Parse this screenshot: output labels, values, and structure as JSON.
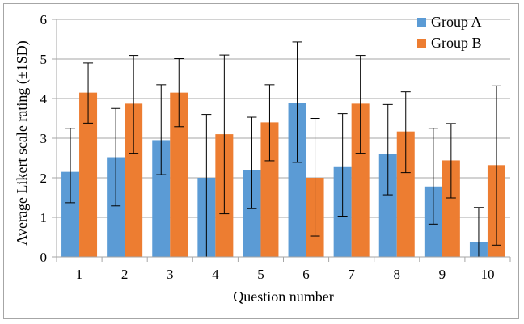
{
  "chart_data": {
    "type": "bar",
    "title": "",
    "xlabel": "Question number",
    "ylabel": "Average Likert scale rating (±1SD)",
    "categories": [
      "1",
      "2",
      "3",
      "4",
      "5",
      "6",
      "7",
      "8",
      "9",
      "10"
    ],
    "ylim": [
      0,
      6
    ],
    "yticks": [
      "0",
      "1",
      "2",
      "3",
      "4",
      "5",
      "6"
    ],
    "grid": true,
    "legend_position": "top-right",
    "series": [
      {
        "name": "Group A",
        "color": "#5b9bd5",
        "values": [
          2.15,
          2.52,
          2.95,
          2.0,
          2.2,
          3.88,
          2.27,
          2.6,
          1.78,
          0.37
        ],
        "err_upper": [
          3.25,
          3.75,
          4.35,
          3.6,
          3.53,
          5.43,
          3.62,
          3.85,
          3.25,
          1.25
        ],
        "err_lower": [
          1.37,
          1.29,
          2.08,
          0.0,
          1.22,
          2.39,
          1.03,
          1.57,
          0.83,
          0.0
        ]
      },
      {
        "name": "Group B",
        "color": "#ed7d31",
        "values": [
          4.15,
          3.87,
          4.15,
          3.1,
          3.4,
          2.0,
          3.87,
          3.17,
          2.44,
          2.32
        ],
        "err_upper": [
          4.9,
          5.09,
          5.01,
          5.1,
          4.35,
          3.5,
          5.09,
          4.17,
          3.37,
          4.32
        ],
        "err_lower": [
          3.38,
          2.62,
          3.29,
          1.09,
          2.43,
          0.53,
          2.62,
          2.13,
          1.49,
          0.3
        ]
      }
    ]
  }
}
